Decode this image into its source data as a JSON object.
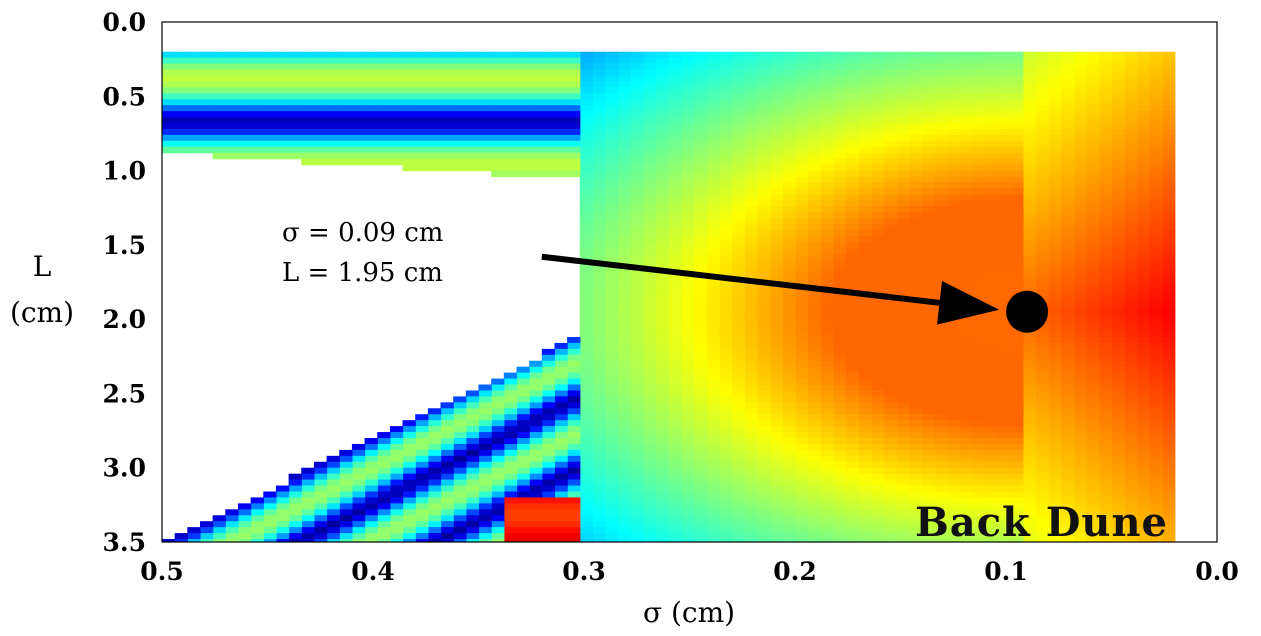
{
  "chart_data": {
    "type": "heatmap",
    "xlabel": "σ (cm)",
    "ylabel_lines": [
      "L",
      "(cm)"
    ],
    "xlim": [
      0.5,
      0.0
    ],
    "ylim": [
      0.0,
      3.5
    ],
    "x_ticks": [
      "0.5",
      "0.4",
      "0.3",
      "0.2",
      "0.1",
      "0.0"
    ],
    "y_ticks": [
      "0.0",
      "0.5",
      "1.0",
      "1.5",
      "2.0",
      "2.5",
      "3.0",
      "3.5"
    ],
    "data_extent": {
      "x": [
        0.02,
        0.5
      ],
      "y": [
        0.2,
        3.5
      ]
    },
    "colormap": [
      "#00008b",
      "#0000ff",
      "#00ffff",
      "#ffff00",
      "#ff0000",
      "#8b0000"
    ],
    "panel_label": "Back Dune",
    "marker": {
      "sigma": 0.09,
      "L": 1.95,
      "color": "#000000"
    },
    "annotation": {
      "lines": [
        "σ = 0.09 cm",
        "L = 1.95 cm"
      ],
      "arrow_from": {
        "sigma": 0.32,
        "L": 1.58
      }
    }
  }
}
